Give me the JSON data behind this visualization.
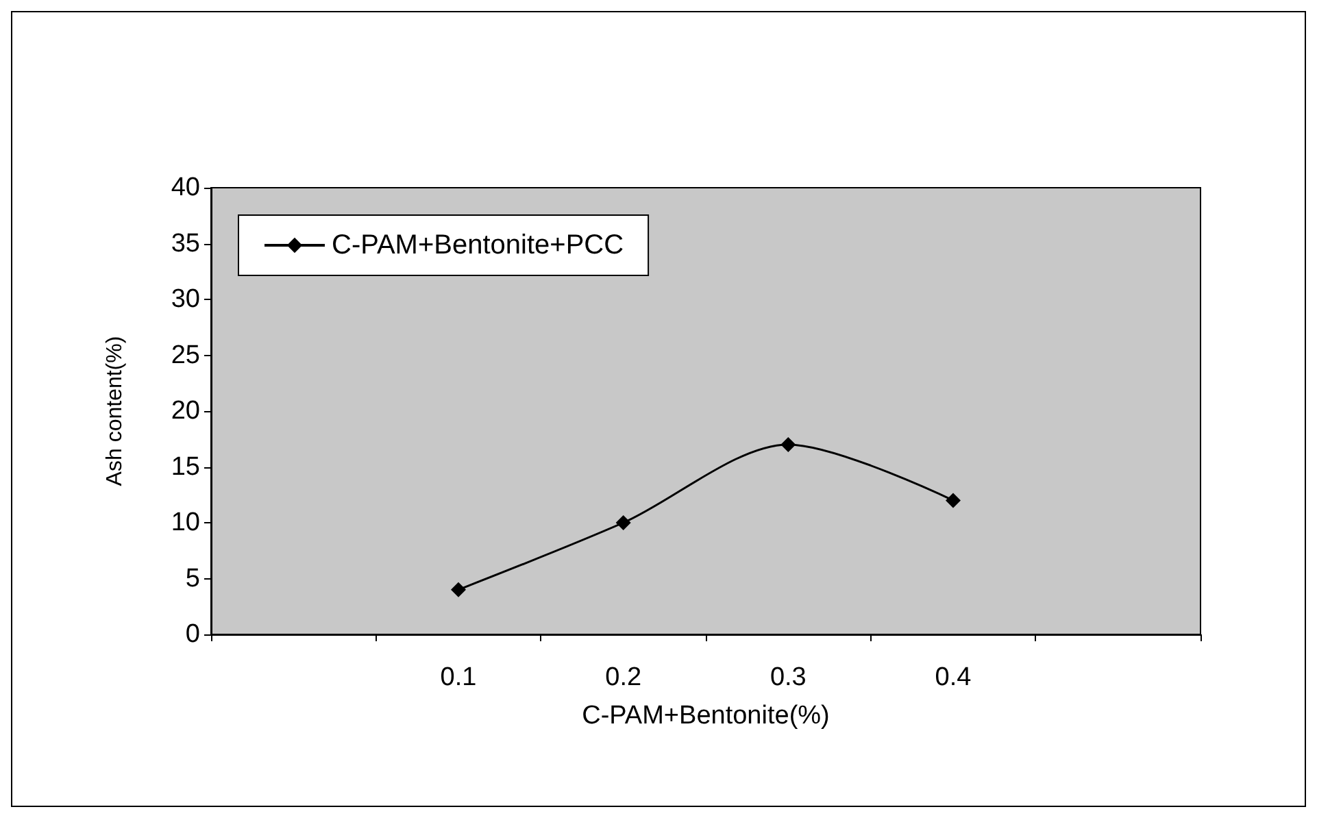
{
  "chart_data": {
    "type": "line",
    "xlabel": "C-PAM+Bentonite(%)",
    "ylabel": "Ash content(%)",
    "categories": [
      null,
      "0.1",
      "0.2",
      "0.3",
      "0.4",
      null
    ],
    "series": [
      {
        "name": "C-PAM+Bentonite+PCC",
        "color": "#000000",
        "values": [
          null,
          4,
          10,
          17,
          12,
          null
        ]
      }
    ],
    "ylim": [
      0,
      40
    ],
    "yticks": [
      0,
      5,
      10,
      15,
      20,
      25,
      30,
      35,
      40
    ],
    "grid": false,
    "legend": "top left",
    "marker": "diamond",
    "line_style": "solid"
  }
}
